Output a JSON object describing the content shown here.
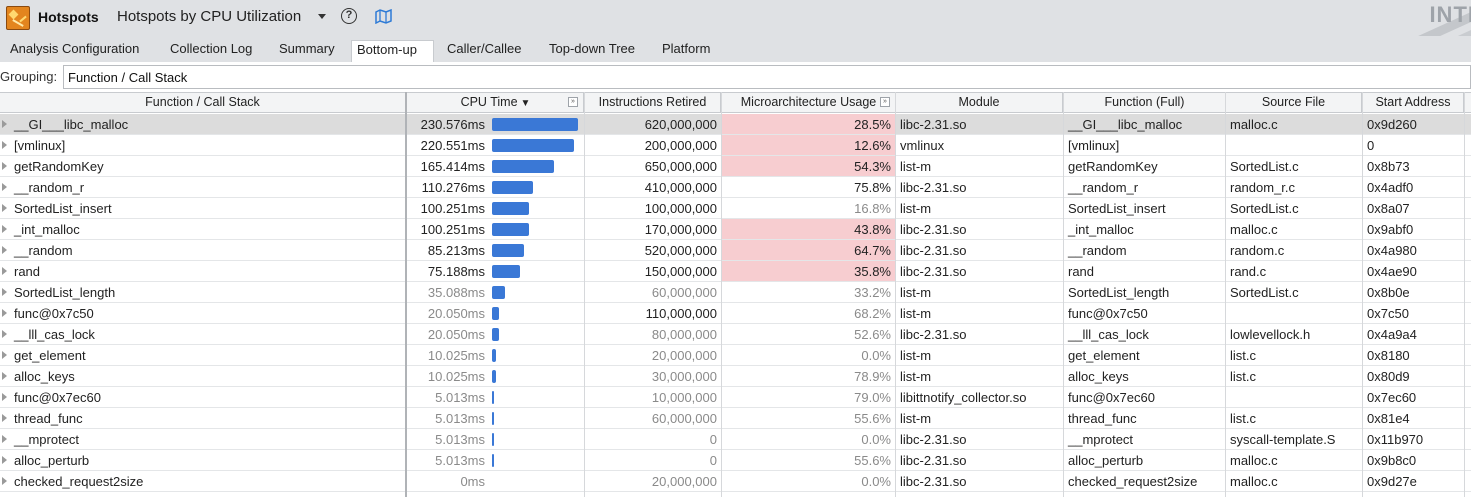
{
  "header": {
    "analysis_label": "Hotspots",
    "analysis_title": "Hotspots by CPU Utilization",
    "brand_text": "INTI"
  },
  "tabs": [
    {
      "label": "Analysis Configuration",
      "active": false
    },
    {
      "label": "Collection Log",
      "active": false
    },
    {
      "label": "Summary",
      "active": false
    },
    {
      "label": "Bottom-up",
      "active": true
    },
    {
      "label": "Caller/Callee",
      "active": false
    },
    {
      "label": "Top-down Tree",
      "active": false
    },
    {
      "label": "Platform",
      "active": false
    }
  ],
  "grouping": {
    "label": "Grouping:",
    "value": "Function / Call Stack"
  },
  "columns": {
    "function": "Function / Call Stack",
    "cpu_time": "CPU Time",
    "instructions": "Instructions Retired",
    "uarch": "Microarchitecture Usage",
    "module": "Module",
    "function_full": "Function (Full)",
    "source_file": "Source File",
    "start_address": "Start Address",
    "sort_indicator": "▼",
    "expand_glyph": "»"
  },
  "accent_colors": {
    "bar": "#3a78d6",
    "hot_cell": "#f7cdd0"
  },
  "cpu_time_max_ms": 230.576,
  "rows": [
    {
      "func": "__GI___libc_malloc",
      "cpu": "230.576ms",
      "cpu_ms": 230.576,
      "instr": "620,000,000",
      "uarch": "28.5%",
      "hot": true,
      "module": "libc-2.31.so",
      "full": "__GI___libc_malloc",
      "src": "malloc.c",
      "addr": "0x9d260",
      "muted": false,
      "selected": true
    },
    {
      "func": "[vmlinux]",
      "cpu": "220.551ms",
      "cpu_ms": 220.551,
      "instr": "200,000,000",
      "uarch": "12.6%",
      "hot": true,
      "module": "vmlinux",
      "full": "[vmlinux]",
      "src": "",
      "addr": "0",
      "muted": false,
      "selected": false
    },
    {
      "func": "getRandomKey",
      "cpu": "165.414ms",
      "cpu_ms": 165.414,
      "instr": "650,000,000",
      "uarch": "54.3%",
      "hot": true,
      "module": "list-m",
      "full": "getRandomKey",
      "src": "SortedList.c",
      "addr": "0x8b73",
      "muted": false,
      "selected": false
    },
    {
      "func": "__random_r",
      "cpu": "110.276ms",
      "cpu_ms": 110.276,
      "instr": "410,000,000",
      "uarch": "75.8%",
      "hot": false,
      "module": "libc-2.31.so",
      "full": "__random_r",
      "src": "random_r.c",
      "addr": "0x4adf0",
      "muted": false,
      "selected": false
    },
    {
      "func": "SortedList_insert",
      "cpu": "100.251ms",
      "cpu_ms": 100.251,
      "instr": "100,000,000",
      "uarch": "16.8%",
      "hot": false,
      "uarch_muted": true,
      "module": "list-m",
      "full": "SortedList_insert",
      "src": "SortedList.c",
      "addr": "0x8a07",
      "muted": false,
      "selected": false
    },
    {
      "func": "_int_malloc",
      "cpu": "100.251ms",
      "cpu_ms": 100.251,
      "instr": "170,000,000",
      "uarch": "43.8%",
      "hot": true,
      "module": "libc-2.31.so",
      "full": "_int_malloc",
      "src": "malloc.c",
      "addr": "0x9abf0",
      "muted": false,
      "selected": false
    },
    {
      "func": "__random",
      "cpu": "85.213ms",
      "cpu_ms": 85.213,
      "instr": "520,000,000",
      "uarch": "64.7%",
      "hot": true,
      "module": "libc-2.31.so",
      "full": "__random",
      "src": "random.c",
      "addr": "0x4a980",
      "muted": false,
      "selected": false
    },
    {
      "func": "rand",
      "cpu": "75.188ms",
      "cpu_ms": 75.188,
      "instr": "150,000,000",
      "uarch": "35.8%",
      "hot": true,
      "module": "libc-2.31.so",
      "full": "rand",
      "src": "rand.c",
      "addr": "0x4ae90",
      "muted": false,
      "selected": false
    },
    {
      "func": "SortedList_length",
      "cpu": "35.088ms",
      "cpu_ms": 35.088,
      "instr": "60,000,000",
      "uarch": "33.2%",
      "hot": false,
      "module": "list-m",
      "full": "SortedList_length",
      "src": "SortedList.c",
      "addr": "0x8b0e",
      "muted": true,
      "selected": false
    },
    {
      "func": "func@0x7c50",
      "cpu": "20.050ms",
      "cpu_ms": 20.05,
      "instr": "110,000,000",
      "instr_dark": true,
      "uarch": "68.2%",
      "hot": false,
      "module": "list-m",
      "full": "func@0x7c50",
      "src": "",
      "addr": "0x7c50",
      "muted": true,
      "selected": false
    },
    {
      "func": "__lll_cas_lock",
      "cpu": "20.050ms",
      "cpu_ms": 20.05,
      "instr": "80,000,000",
      "uarch": "52.6%",
      "hot": false,
      "module": "libc-2.31.so",
      "full": "__lll_cas_lock",
      "src": "lowlevellock.h",
      "addr": "0x4a9a4",
      "muted": true,
      "selected": false
    },
    {
      "func": "get_element",
      "cpu": "10.025ms",
      "cpu_ms": 10.025,
      "instr": "20,000,000",
      "uarch": "0.0%",
      "hot": false,
      "module": "list-m",
      "full": "get_element",
      "src": "list.c",
      "addr": "0x8180",
      "muted": true,
      "selected": false
    },
    {
      "func": "alloc_keys",
      "cpu": "10.025ms",
      "cpu_ms": 10.025,
      "instr": "30,000,000",
      "uarch": "78.9%",
      "hot": false,
      "module": "list-m",
      "full": "alloc_keys",
      "src": "list.c",
      "addr": "0x80d9",
      "muted": true,
      "selected": false
    },
    {
      "func": "func@0x7ec60",
      "cpu": "5.013ms",
      "cpu_ms": 5.013,
      "instr": "10,000,000",
      "uarch": "79.0%",
      "hot": false,
      "module": "libittnotify_collector.so",
      "full": "func@0x7ec60",
      "src": "",
      "addr": "0x7ec60",
      "muted": true,
      "selected": false
    },
    {
      "func": "thread_func",
      "cpu": "5.013ms",
      "cpu_ms": 5.013,
      "instr": "60,000,000",
      "uarch": "55.6%",
      "hot": false,
      "module": "list-m",
      "full": "thread_func",
      "src": "list.c",
      "addr": "0x81e4",
      "muted": true,
      "selected": false
    },
    {
      "func": "__mprotect",
      "cpu": "5.013ms",
      "cpu_ms": 5.013,
      "instr": "0",
      "uarch": "0.0%",
      "hot": false,
      "module": "libc-2.31.so",
      "full": "__mprotect",
      "src": "syscall-template.S",
      "addr": "0x11b970",
      "muted": true,
      "selected": false
    },
    {
      "func": "alloc_perturb",
      "cpu": "5.013ms",
      "cpu_ms": 5.013,
      "instr": "0",
      "uarch": "55.6%",
      "hot": false,
      "module": "libc-2.31.so",
      "full": "alloc_perturb",
      "src": "malloc.c",
      "addr": "0x9b8c0",
      "muted": true,
      "selected": false
    },
    {
      "func": "checked_request2size",
      "cpu": "0ms",
      "cpu_ms": 0,
      "instr": "20,000,000",
      "uarch": "0.0%",
      "hot": false,
      "module": "libc-2.31.so",
      "full": "checked_request2size",
      "src": "malloc.c",
      "addr": "0x9d27e",
      "muted": true,
      "selected": false
    }
  ]
}
